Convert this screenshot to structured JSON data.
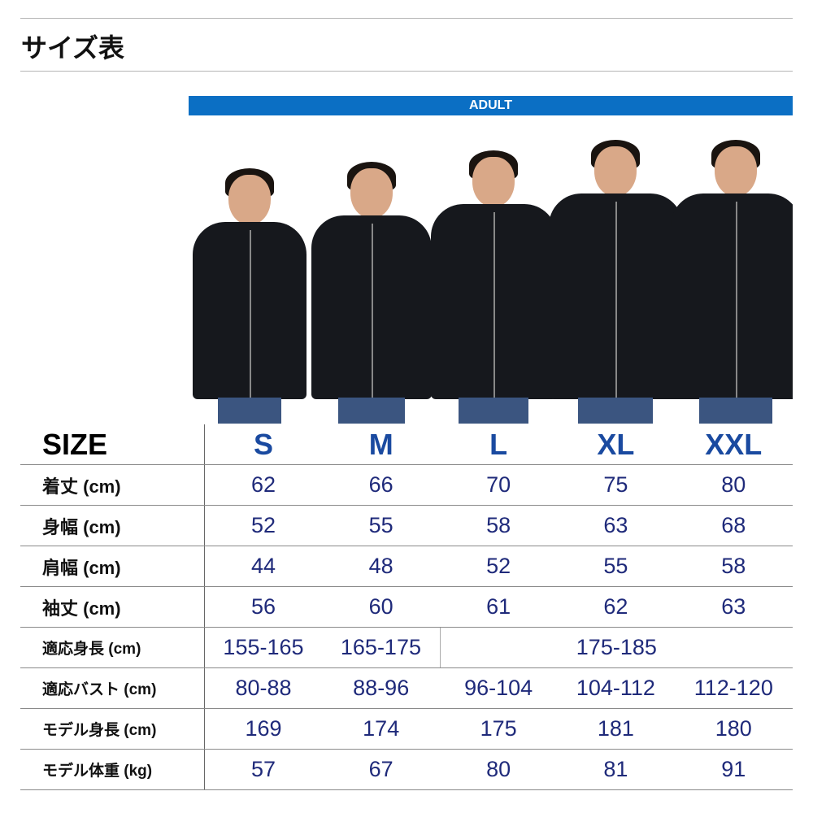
{
  "title": "サイズ表",
  "banner": "ADULT",
  "colors": {
    "banner": "#0b6fc4",
    "size_header": "#1a4aa0",
    "values": "#1f2a7a"
  },
  "table": {
    "header": {
      "label": "SIZE",
      "sizes": [
        "S",
        "M",
        "L",
        "XL",
        "XXL"
      ]
    },
    "rows": [
      {
        "label": "着丈 (cm)",
        "values": [
          "62",
          "66",
          "70",
          "75",
          "80"
        ]
      },
      {
        "label": "身幅 (cm)",
        "values": [
          "52",
          "55",
          "58",
          "63",
          "68"
        ]
      },
      {
        "label": "肩幅 (cm)",
        "values": [
          "44",
          "48",
          "52",
          "55",
          "58"
        ]
      },
      {
        "label": "袖丈 (cm)",
        "values": [
          "56",
          "60",
          "61",
          "62",
          "63"
        ]
      },
      {
        "label": "適応身長 (cm)",
        "values": [
          "155-165",
          "165-175"
        ],
        "merged": "175-185"
      },
      {
        "label": "適応バスト (cm)",
        "values": [
          "80-88",
          "88-96",
          "96-104",
          "104-112",
          "112-120"
        ]
      },
      {
        "label": "モデル身長 (cm)",
        "values": [
          "169",
          "174",
          "175",
          "181",
          "180"
        ]
      },
      {
        "label": "モデル体重 (kg)",
        "values": [
          "57",
          "67",
          "80",
          "81",
          "91"
        ]
      }
    ]
  }
}
